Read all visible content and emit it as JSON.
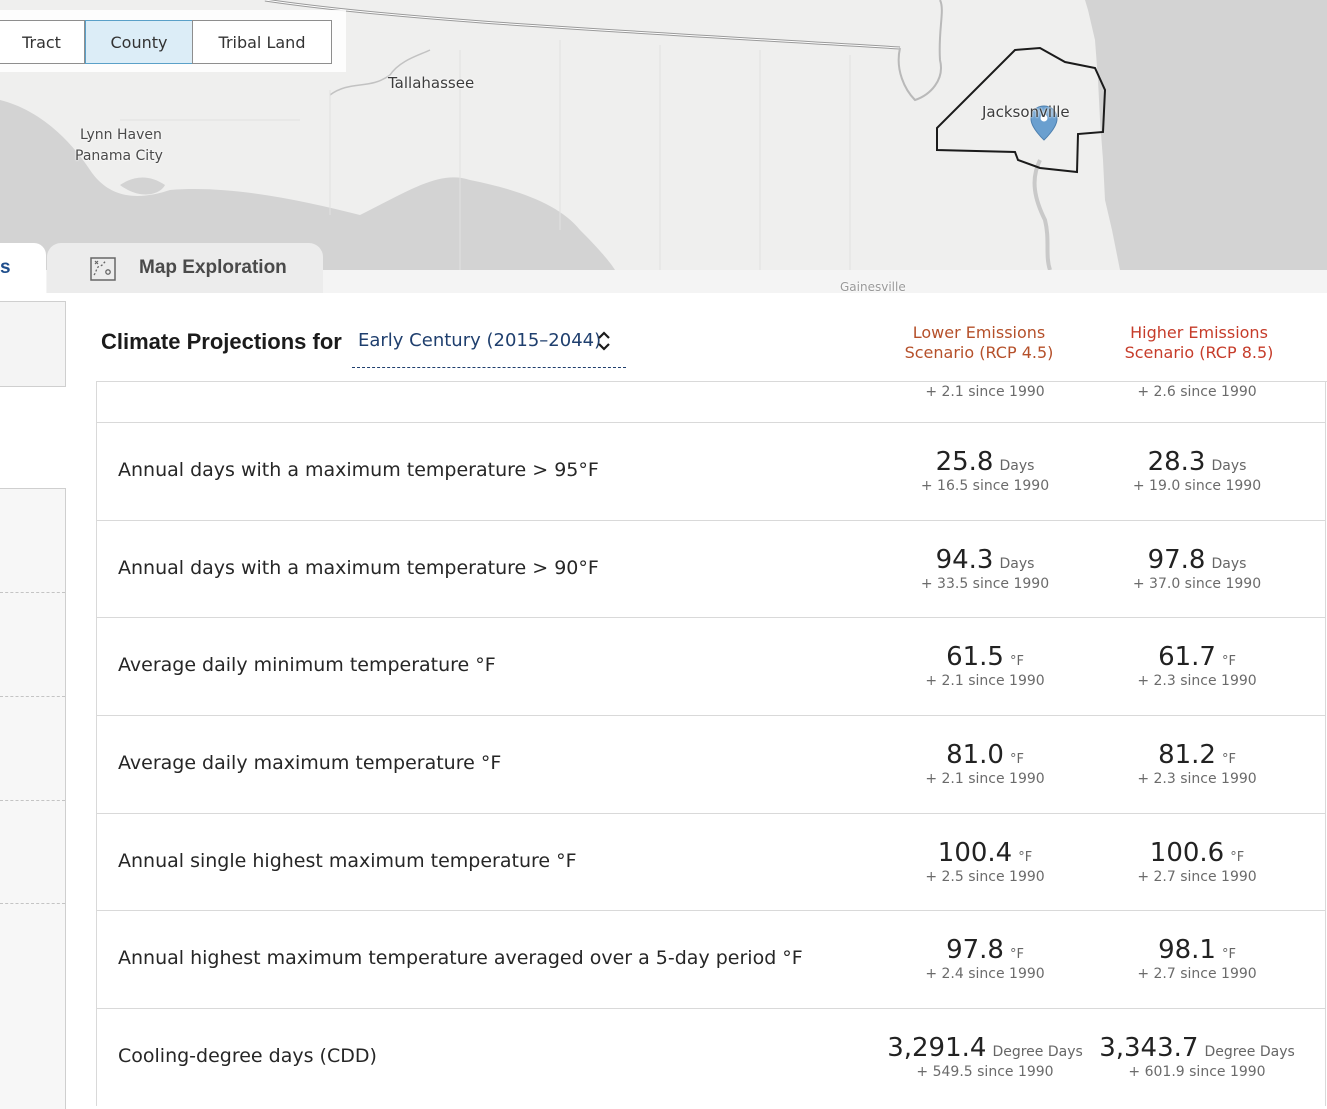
{
  "map": {
    "labels": {
      "tallahassee": "Tallahassee",
      "lynn_haven": "Lynn Haven",
      "panama_city": "Panama City",
      "jacksonville": "Jacksonville",
      "gainesville": "Gainesville"
    },
    "geography_buttons": [
      {
        "label": "Tract",
        "active": false
      },
      {
        "label": "County",
        "active": true
      },
      {
        "label": "Tribal Land",
        "active": false
      }
    ]
  },
  "tabs": {
    "left_partial": "s",
    "map_exploration": "Map Exploration"
  },
  "panel": {
    "title": "Climate Projections for",
    "period": "Early Century (2015–2044)",
    "scenarios": {
      "lower": {
        "line1": "Lower Emissions",
        "line2": "Scenario (RCP 4.5)",
        "color": "#b5502a"
      },
      "higher": {
        "line1": "Higher Emissions",
        "line2": "Scenario (RCP 8.5)",
        "color": "#c63c2a"
      }
    },
    "rows": [
      {
        "label": "",
        "low": {
          "value": "",
          "unit": "",
          "since": "+ 2.1 since 1990"
        },
        "high": {
          "value": "",
          "unit": "",
          "since": "+ 2.6 since 1990"
        }
      },
      {
        "label": "Annual days with a maximum temperature > 95°F",
        "low": {
          "value": "25.8",
          "unit": "Days",
          "since": "+ 16.5 since 1990"
        },
        "high": {
          "value": "28.3",
          "unit": "Days",
          "since": "+ 19.0 since 1990"
        }
      },
      {
        "label": "Annual days with a maximum temperature > 90°F",
        "low": {
          "value": "94.3",
          "unit": "Days",
          "since": "+ 33.5 since 1990"
        },
        "high": {
          "value": "97.8",
          "unit": "Days",
          "since": "+ 37.0 since 1990"
        }
      },
      {
        "label": "Average daily minimum temperature °F",
        "low": {
          "value": "61.5",
          "unit": "°F",
          "since": "+ 2.1 since 1990"
        },
        "high": {
          "value": "61.7",
          "unit": "°F",
          "since": "+ 2.3 since 1990"
        }
      },
      {
        "label": "Average daily maximum temperature °F",
        "low": {
          "value": "81.0",
          "unit": "°F",
          "since": "+ 2.1 since 1990"
        },
        "high": {
          "value": "81.2",
          "unit": "°F",
          "since": "+ 2.3 since 1990"
        }
      },
      {
        "label": "Annual single highest maximum temperature °F",
        "low": {
          "value": "100.4",
          "unit": "°F",
          "since": "+ 2.5 since 1990"
        },
        "high": {
          "value": "100.6",
          "unit": "°F",
          "since": "+ 2.7 since 1990"
        }
      },
      {
        "label": "Annual highest maximum temperature averaged over a 5-day period °F",
        "low": {
          "value": "97.8",
          "unit": "°F",
          "since": "+ 2.4 since 1990"
        },
        "high": {
          "value": "98.1",
          "unit": "°F",
          "since": "+ 2.7 since 1990"
        }
      },
      {
        "label": "Cooling-degree days (CDD)",
        "low": {
          "value": "3,291.4",
          "unit": "Degree Days",
          "since": "+ 549.5 since 1990"
        },
        "high": {
          "value": "3,343.7",
          "unit": "Degree Days",
          "since": "+ 601.9 since 1990"
        }
      }
    ]
  }
}
